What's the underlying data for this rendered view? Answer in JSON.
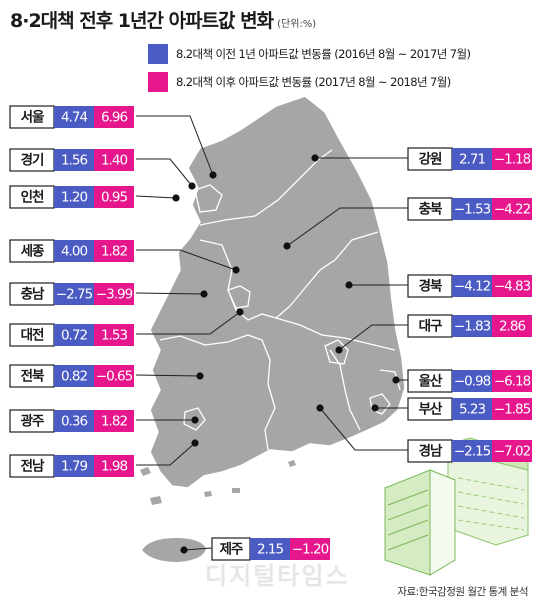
{
  "title": "8·2대책 전후 1년간 아파트값 변화",
  "unit": "(단위:%)",
  "source": "자료:한국감정원 월간 통계 분석",
  "watermark": "디지털타임스",
  "colors": {
    "before": "#4a5bc4",
    "after": "#e6178c",
    "map": "#a6a6a6",
    "map_border": "#ffffff",
    "label_border": "#1f1f1f"
  },
  "legend": [
    {
      "label": "8.2대책 이전 1년 아파트값 변동률 (2016년 8월 ~ 2017년 7월)",
      "color": "#4a5bc4"
    },
    {
      "label": "8.2대책 이후 아파트값 변동률 (2017년 8월 ~ 2018년 7월)",
      "color": "#e6178c"
    }
  ],
  "chart_data": {
    "type": "table",
    "series": [
      {
        "name": "8.2대책 이전 1년 아파트값 변동률 (2016년 8월 ~ 2017년 7월)"
      },
      {
        "name": "8.2대책 이후 아파트값 변동률 (2017년 8월 ~ 2018년 7월)"
      }
    ],
    "regions": [
      {
        "name": "서울",
        "before": 4.74,
        "after": 6.96
      },
      {
        "name": "경기",
        "before": 1.56,
        "after": 1.4
      },
      {
        "name": "인천",
        "before": 1.2,
        "after": 0.95
      },
      {
        "name": "세종",
        "before": 4.0,
        "after": 1.82
      },
      {
        "name": "충남",
        "before": -2.75,
        "after": -3.99
      },
      {
        "name": "대전",
        "before": 0.72,
        "after": 1.53
      },
      {
        "name": "전북",
        "before": 0.82,
        "after": -0.65
      },
      {
        "name": "광주",
        "before": 0.36,
        "after": 1.82
      },
      {
        "name": "전남",
        "before": 1.79,
        "after": 1.98
      },
      {
        "name": "제주",
        "before": 2.15,
        "after": -1.2
      },
      {
        "name": "강원",
        "before": 2.71,
        "after": -1.18
      },
      {
        "name": "충북",
        "before": -1.53,
        "after": -4.22
      },
      {
        "name": "경북",
        "before": -4.12,
        "after": -4.83
      },
      {
        "name": "대구",
        "before": -1.83,
        "after": 2.86
      },
      {
        "name": "울산",
        "before": -0.98,
        "after": -6.18
      },
      {
        "name": "부산",
        "before": 5.23,
        "after": -1.85
      },
      {
        "name": "경남",
        "before": -2.15,
        "after": -7.02
      }
    ]
  }
}
